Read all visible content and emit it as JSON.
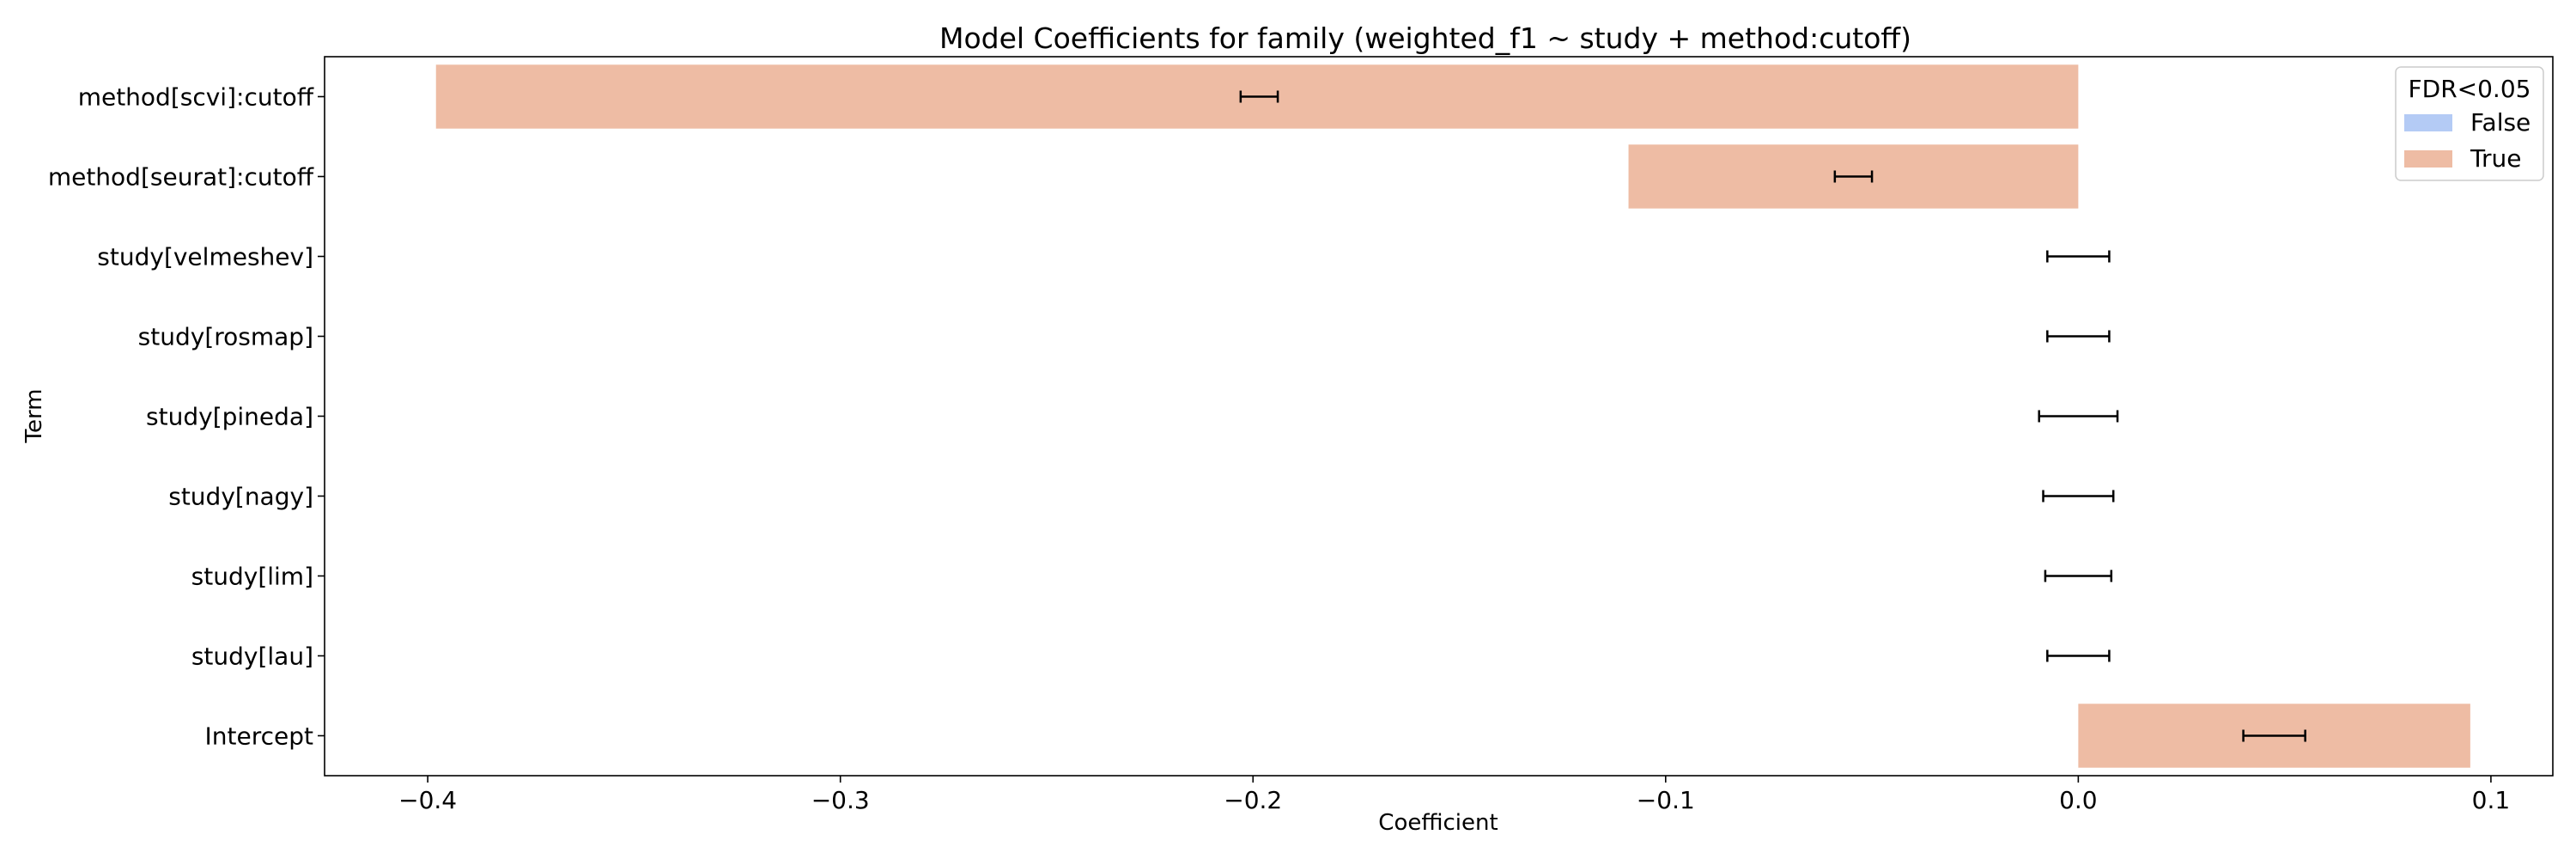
{
  "chart_data": {
    "type": "bar",
    "orientation": "horizontal",
    "title": "Model Coefficients for family (weighted_f1 ~  study + method:cutoff)",
    "xlabel": "Coefficient",
    "ylabel": "Term",
    "xlim": [
      -0.425,
      0.115
    ],
    "xticks": [
      -0.4,
      -0.3,
      -0.2,
      -0.1,
      0.0,
      0.1
    ],
    "xtick_labels": [
      "−0.4",
      "−0.3",
      "−0.2",
      "−0.1",
      "0.0",
      "0.1"
    ],
    "grid": false,
    "categories": [
      "method[scvi]:cutoff",
      "method[seurat]:cutoff",
      "study[velmeshev]",
      "study[rosmap]",
      "study[pineda]",
      "study[nagy]",
      "study[lim]",
      "study[lau]",
      "Intercept"
    ],
    "values": [
      -0.398,
      -0.109,
      0.0,
      0.0,
      0.0,
      0.0,
      0.0,
      0.0,
      0.095
    ],
    "fdr_significant": [
      true,
      true,
      false,
      false,
      false,
      false,
      false,
      false,
      true
    ],
    "error_low": [
      -0.203,
      -0.059,
      -0.0075,
      -0.0075,
      -0.0095,
      -0.0085,
      -0.008,
      -0.0075,
      0.04
    ],
    "error_high": [
      -0.194,
      -0.05,
      0.0075,
      0.0075,
      0.0095,
      0.0085,
      0.008,
      0.0075,
      0.055
    ],
    "legend": {
      "title": "FDR<0.05",
      "placement": "top-right",
      "entries": [
        {
          "label": "False",
          "color": "#b4cbf5"
        },
        {
          "label": "True",
          "color": "#eebca4"
        }
      ]
    },
    "colors": {
      "false": "#b4cbf5",
      "true": "#eebca4",
      "errorbar": "#000000"
    }
  }
}
